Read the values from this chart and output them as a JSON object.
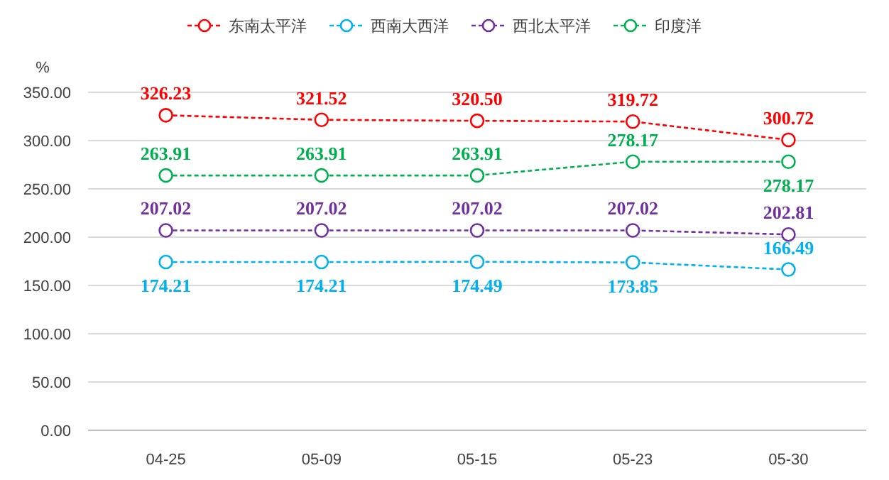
{
  "chart_data": {
    "type": "line",
    "ylabel": "%",
    "categories": [
      "04-25",
      "05-09",
      "05-15",
      "05-23",
      "05-30"
    ],
    "ylim": [
      0,
      350
    ],
    "yticks": [
      {
        "value": 0,
        "label": "0.00"
      },
      {
        "value": 50,
        "label": "50.00"
      },
      {
        "value": 100,
        "label": "100.00"
      },
      {
        "value": 150,
        "label": "150.00"
      },
      {
        "value": 200,
        "label": "200.00"
      },
      {
        "value": 250,
        "label": "250.00"
      },
      {
        "value": 300,
        "label": "300.00"
      },
      {
        "value": 350,
        "label": "350.00"
      }
    ],
    "grid": "y",
    "legend": "top",
    "marker": "circle",
    "line_style": "dashed",
    "series": [
      {
        "name": "东南太平洋",
        "color": "#ff0000",
        "values": [
          326.23,
          321.52,
          320.5,
          319.72,
          300.72
        ],
        "value_labels": [
          "326.23",
          "321.52",
          "320.50",
          "319.72",
          "300.72"
        ]
      },
      {
        "name": "西南大西洋",
        "color": "#00b0f0",
        "values": [
          174.21,
          174.21,
          174.49,
          173.85,
          166.49
        ],
        "value_labels": [
          "174.21",
          "174.21",
          "174.49",
          "173.85",
          "166.49"
        ]
      },
      {
        "name": "西北太平洋",
        "color": "#7030a0",
        "values": [
          207.02,
          207.02,
          207.02,
          207.02,
          202.81
        ],
        "value_labels": [
          "207.02",
          "207.02",
          "207.02",
          "207.02",
          "202.81"
        ]
      },
      {
        "name": "印度洋",
        "color": "#00b050",
        "values": [
          263.91,
          263.91,
          263.91,
          278.17,
          278.17
        ],
        "value_labels": [
          "263.91",
          "263.91",
          "263.91",
          "278.17",
          "278.17"
        ]
      }
    ]
  }
}
